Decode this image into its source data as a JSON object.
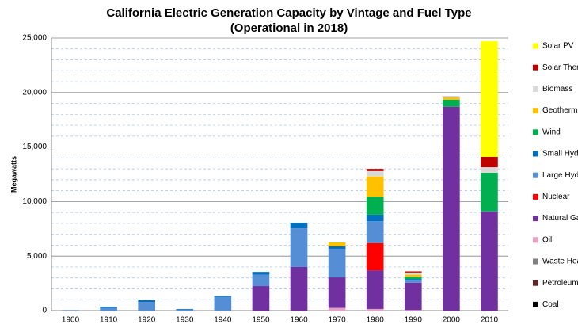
{
  "chart_data": {
    "type": "stacked_bar",
    "title": "California Electric Generation Capacity by Vintage and Fuel Type",
    "subtitle": "(Operational in 2018)",
    "y_label": "Megawatts",
    "categories": [
      "1900",
      "1910",
      "1920",
      "1930",
      "1940",
      "1950",
      "1960",
      "1970",
      "1980",
      "1990",
      "2000",
      "2010"
    ],
    "series": [
      {
        "name": "Coal",
        "color": "#000000",
        "values": [
          0,
          0,
          0,
          0,
          0,
          0,
          0,
          0,
          0,
          0,
          0,
          0
        ]
      },
      {
        "name": "Petroleum Coke",
        "color": "#632523",
        "values": [
          0,
          0,
          0,
          0,
          0,
          0,
          0,
          0,
          0,
          0,
          0,
          0
        ]
      },
      {
        "name": "Waste Heat",
        "color": "#7f7f7f",
        "values": [
          0,
          0,
          0,
          0,
          0,
          0,
          0,
          0,
          0,
          0,
          0,
          0
        ]
      },
      {
        "name": "Oil",
        "color": "#e6a0c4",
        "values": [
          0,
          0,
          0,
          0,
          0,
          0,
          0,
          250,
          150,
          50,
          0,
          0
        ]
      },
      {
        "name": "Natural Gas",
        "color": "#7030a0",
        "values": [
          0,
          0,
          0,
          0,
          0,
          2250,
          4000,
          2800,
          3550,
          2500,
          18700,
          9100
        ]
      },
      {
        "name": "Nuclear",
        "color": "#ff0000",
        "values": [
          0,
          0,
          0,
          0,
          0,
          0,
          0,
          0,
          2500,
          0,
          0,
          0
        ]
      },
      {
        "name": "Large Hydro",
        "color": "#558ed5",
        "values": [
          50,
          250,
          800,
          100,
          1250,
          1050,
          3550,
          2600,
          2000,
          200,
          0,
          0
        ]
      },
      {
        "name": "Small Hydro",
        "color": "#0070c0",
        "values": [
          0,
          100,
          150,
          50,
          100,
          250,
          500,
          250,
          600,
          150,
          0,
          0
        ]
      },
      {
        "name": "Wind",
        "color": "#00b050",
        "values": [
          0,
          0,
          0,
          0,
          0,
          0,
          0,
          0,
          1650,
          200,
          650,
          3550
        ]
      },
      {
        "name": "Geothermal",
        "color": "#ffc000",
        "values": [
          0,
          0,
          0,
          0,
          0,
          0,
          0,
          350,
          1850,
          200,
          200,
          0
        ]
      },
      {
        "name": "Biomass",
        "color": "#d9d9d9",
        "values": [
          0,
          0,
          0,
          0,
          0,
          0,
          0,
          0,
          500,
          200,
          150,
          500
        ]
      },
      {
        "name": "Solar Thermal",
        "color": "#c00000",
        "values": [
          0,
          0,
          0,
          0,
          0,
          0,
          0,
          0,
          200,
          100,
          0,
          950
        ]
      },
      {
        "name": "Solar PV",
        "color": "#ffff00",
        "values": [
          0,
          0,
          0,
          0,
          0,
          0,
          0,
          0,
          0,
          0,
          0,
          10600
        ]
      }
    ],
    "ylim": [
      0,
      25000
    ],
    "yticks": [
      0,
      {
        "value": 5000,
        "label": "5,000"
      },
      {
        "value": 10000,
        "label": "10,000"
      },
      {
        "value": 15000,
        "label": "15,000"
      },
      {
        "value": 20000,
        "label": "20,000"
      },
      {
        "value": 25000,
        "label": "25,000"
      }
    ],
    "grid": true
  }
}
